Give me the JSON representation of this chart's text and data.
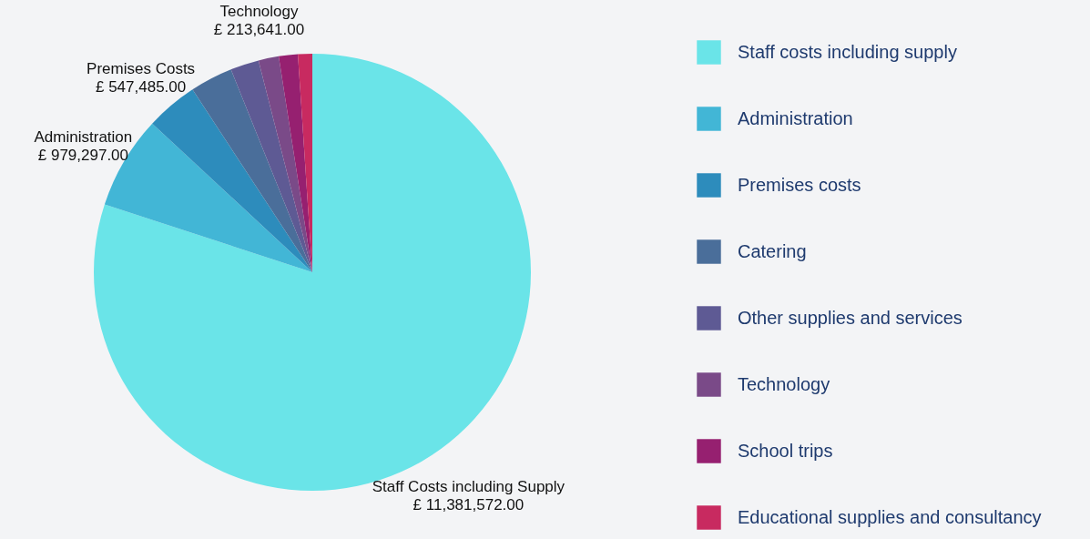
{
  "chart_data": {
    "type": "pie",
    "categories": [
      "Staff costs including supply",
      "Administration",
      "Premises costs",
      "Catering",
      "Other supplies and services",
      "Technology",
      "School trips",
      "Educational supplies and consultancy"
    ],
    "values": [
      11381572,
      979297,
      547485,
      450000,
      300000,
      213641,
      200000,
      150000
    ],
    "value_labels": [
      "Staff Costs including Supply\n£ 11,381,572.00",
      "Administration\n£ 979,297.00",
      "Premises Costs\n£ 547,485.00",
      null,
      null,
      "Technology\n£ 213,641.00",
      null,
      null
    ],
    "colors": [
      "#6ae4e8",
      "#42b6d6",
      "#2d8cbc",
      "#4a6e9a",
      "#5e5a94",
      "#7a4a88",
      "#962070",
      "#c82a60"
    ],
    "legend": "right"
  }
}
